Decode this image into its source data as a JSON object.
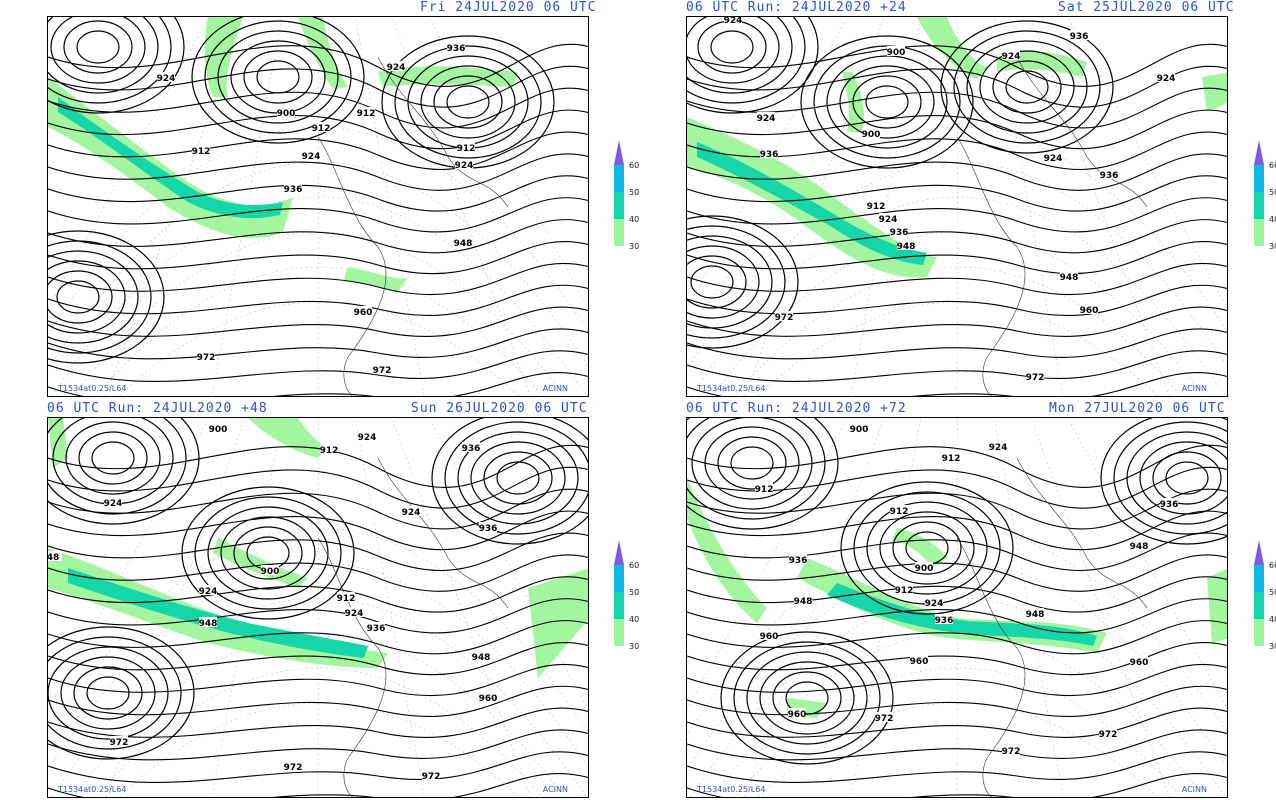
{
  "panels": [
    {
      "header_left": "",
      "header_right": "Fri 24JUL2020 06 UTC",
      "footer_left": "T1534at0.25/L64",
      "footer_right": "ACINN",
      "contours": [
        {
          "label": "924",
          "lx": 165,
          "ly": 77
        },
        {
          "label": "900",
          "lx": 285,
          "ly": 112
        },
        {
          "label": "912",
          "lx": 320,
          "ly": 127
        },
        {
          "label": "912",
          "lx": 200,
          "ly": 150
        },
        {
          "label": "924",
          "lx": 310,
          "ly": 155
        },
        {
          "label": "936",
          "lx": 292,
          "ly": 188
        },
        {
          "label": "936",
          "lx": 455,
          "ly": 47
        },
        {
          "label": "924",
          "lx": 395,
          "ly": 66
        },
        {
          "label": "912",
          "lx": 365,
          "ly": 112
        },
        {
          "label": "912",
          "lx": 465,
          "ly": 147
        },
        {
          "label": "924",
          "lx": 463,
          "ly": 164
        },
        {
          "label": "948",
          "lx": 462,
          "ly": 242
        },
        {
          "label": "960",
          "lx": 362,
          "ly": 311
        },
        {
          "label": "972",
          "lx": 205,
          "ly": 356
        },
        {
          "label": "972",
          "lx": 381,
          "ly": 369
        }
      ]
    },
    {
      "header_left": "06 UTC Run: 24JUL2020 +24",
      "header_right": "Sat 25JUL2020 06 UTC",
      "footer_left": "T1534at0.25/L64",
      "footer_right": "ACINN",
      "contours": [
        {
          "label": "924",
          "lx": 732,
          "ly": 19
        },
        {
          "label": "936",
          "lx": 1078,
          "ly": 35
        },
        {
          "label": "900",
          "lx": 895,
          "ly": 51
        },
        {
          "label": "924",
          "lx": 1010,
          "ly": 55
        },
        {
          "label": "924",
          "lx": 1165,
          "ly": 77
        },
        {
          "label": "924",
          "lx": 765,
          "ly": 117
        },
        {
          "label": "900",
          "lx": 870,
          "ly": 133
        },
        {
          "label": "936",
          "lx": 768,
          "ly": 153
        },
        {
          "label": "924",
          "lx": 1052,
          "ly": 157
        },
        {
          "label": "936",
          "lx": 1108,
          "ly": 174
        },
        {
          "label": "912",
          "lx": 875,
          "ly": 205
        },
        {
          "label": "924",
          "lx": 887,
          "ly": 218
        },
        {
          "label": "936",
          "lx": 898,
          "ly": 231
        },
        {
          "label": "948",
          "lx": 905,
          "ly": 245
        },
        {
          "label": "948",
          "lx": 1068,
          "ly": 276
        },
        {
          "label": "960",
          "lx": 1088,
          "ly": 309
        },
        {
          "label": "972",
          "lx": 783,
          "ly": 316
        },
        {
          "label": "972",
          "lx": 1034,
          "ly": 376
        }
      ]
    },
    {
      "header_left": "06 UTC Run: 24JUL2020 +48",
      "header_right": "Sun 26JUL2020 06 UTC",
      "footer_left": "T1534at0.25/L64",
      "footer_right": "ACINN",
      "contours": [
        {
          "label": "900",
          "lx": 217,
          "ly": 428
        },
        {
          "label": "924",
          "lx": 366,
          "ly": 436
        },
        {
          "label": "912",
          "lx": 328,
          "ly": 449
        },
        {
          "label": "936",
          "lx": 470,
          "ly": 447
        },
        {
          "label": "924",
          "lx": 112,
          "ly": 502
        },
        {
          "label": "924",
          "lx": 410,
          "ly": 511
        },
        {
          "label": "936",
          "lx": 487,
          "ly": 527
        },
        {
          "label": "900",
          "lx": 269,
          "ly": 570
        },
        {
          "label": "924",
          "lx": 207,
          "ly": 590
        },
        {
          "label": "912",
          "lx": 345,
          "ly": 597
        },
        {
          "label": "924",
          "lx": 353,
          "ly": 612
        },
        {
          "label": "948",
          "lx": 207,
          "ly": 622
        },
        {
          "label": "936",
          "lx": 375,
          "ly": 627
        },
        {
          "label": "948",
          "lx": 480,
          "ly": 656
        },
        {
          "label": "48",
          "lx": 52,
          "ly": 556
        },
        {
          "label": "960",
          "lx": 487,
          "ly": 697
        },
        {
          "label": "972",
          "lx": 118,
          "ly": 741
        },
        {
          "label": "972",
          "lx": 292,
          "ly": 766
        },
        {
          "label": "972",
          "lx": 430,
          "ly": 775
        }
      ]
    },
    {
      "header_left": "06 UTC Run: 24JUL2020 +72",
      "header_right": "Mon 27JUL2020 06 UTC",
      "footer_left": "T1534at0.25/L64",
      "footer_right": "ACINN",
      "contours": [
        {
          "label": "900",
          "lx": 858,
          "ly": 428
        },
        {
          "label": "924",
          "lx": 997,
          "ly": 446
        },
        {
          "label": "912",
          "lx": 950,
          "ly": 457
        },
        {
          "label": "912",
          "lx": 763,
          "ly": 488
        },
        {
          "label": "936",
          "lx": 1168,
          "ly": 503
        },
        {
          "label": "912",
          "lx": 898,
          "ly": 510
        },
        {
          "label": "900",
          "lx": 923,
          "ly": 567
        },
        {
          "label": "948",
          "lx": 1138,
          "ly": 545
        },
        {
          "label": "936",
          "lx": 797,
          "ly": 559
        },
        {
          "label": "912",
          "lx": 903,
          "ly": 589
        },
        {
          "label": "924",
          "lx": 933,
          "ly": 602
        },
        {
          "label": "948",
          "lx": 802,
          "ly": 600
        },
        {
          "label": "936",
          "lx": 943,
          "ly": 619
        },
        {
          "label": "948",
          "lx": 1034,
          "ly": 613
        },
        {
          "label": "960",
          "lx": 768,
          "ly": 635
        },
        {
          "label": "960",
          "lx": 918,
          "ly": 660
        },
        {
          "label": "960",
          "lx": 1138,
          "ly": 661
        },
        {
          "label": "960",
          "lx": 796,
          "ly": 713
        },
        {
          "label": "972",
          "lx": 883,
          "ly": 717
        },
        {
          "label": "972",
          "lx": 1107,
          "ly": 733
        },
        {
          "label": "972",
          "lx": 1010,
          "ly": 750
        }
      ]
    }
  ],
  "legend": [
    {
      "label": "60",
      "color": "#0fb7e6"
    },
    {
      "label": "50",
      "color": "#14d6a8"
    },
    {
      "label": "40",
      "color": "#9ef59a"
    },
    {
      "label": "30",
      "color": "#ffffff"
    }
  ],
  "legend_top_color": "#7a5ce0",
  "colors": {
    "header": "#2a52d6",
    "jet_light": "#9ef59a",
    "jet_mid": "#14d6a8",
    "jet_core": "#0fb7e6",
    "contour": "#000000"
  }
}
